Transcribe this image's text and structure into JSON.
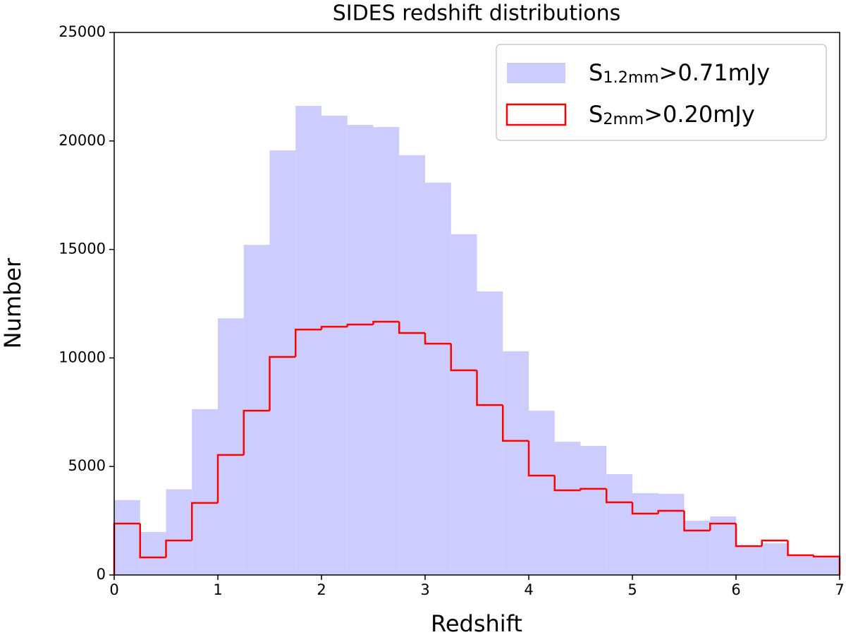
{
  "chart_data": {
    "type": "histogram",
    "title": "SIDES redshift distributions",
    "xlabel": "Redshift",
    "ylabel": "Number",
    "bins": [
      0,
      0.25,
      0.5,
      0.75,
      1,
      1.25,
      1.5,
      1.75,
      2,
      2.25,
      2.5,
      2.75,
      3,
      3.25,
      3.5,
      3.75,
      4,
      4.25,
      4.5,
      4.75,
      5,
      5.25,
      5.5,
      5.75,
      6,
      6.25,
      6.5,
      6.75,
      7
    ],
    "series": [
      {
        "name": "S$_{1.2mm}$>0.71mJy",
        "color": "#ccccff",
        "histtype": "stepfilled",
        "values": [
          3450,
          1980,
          3950,
          7640,
          11830,
          15210,
          19570,
          21620,
          21160,
          20740,
          20640,
          19340,
          18080,
          15700,
          13070,
          10310,
          7570,
          6140,
          5950,
          4650,
          3770,
          3740,
          2500,
          2700,
          1300,
          1460,
          910,
          850
        ]
      },
      {
        "name": "S$_{2mm}$>0.20mJy",
        "color": "#ff0000",
        "histtype": "step",
        "values": [
          2370,
          810,
          1590,
          3320,
          5530,
          7570,
          10050,
          11310,
          11440,
          11540,
          11670,
          11150,
          10660,
          9430,
          7830,
          6180,
          4580,
          3900,
          3970,
          3350,
          2830,
          2960,
          2050,
          2370,
          1330,
          1590,
          910,
          850
        ]
      }
    ],
    "xlim": [
      0,
      7
    ],
    "xticks": [
      0,
      1,
      2,
      3,
      4,
      5,
      6,
      7
    ],
    "ylim": [
      0,
      25000
    ],
    "yticks": [
      0,
      5000,
      10000,
      15000,
      20000,
      25000
    ],
    "legend": "upper right"
  }
}
